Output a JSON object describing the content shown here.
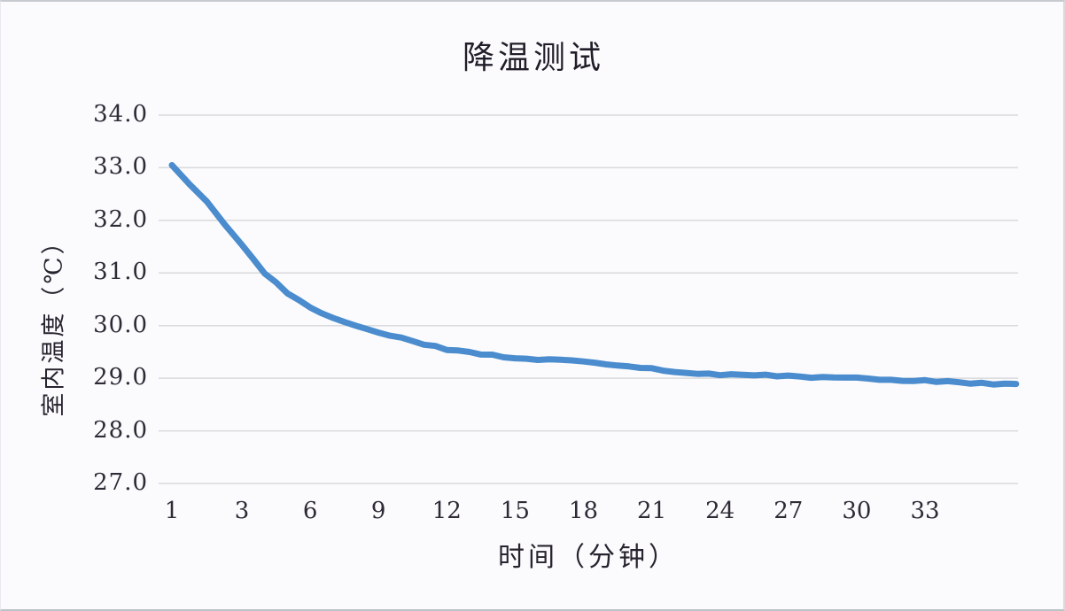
{
  "chart": {
    "colors": {
      "line": "#4a8ccd",
      "grid": "#d9dadc",
      "text": "#2b2733",
      "background": "#fbfbfd"
    }
  },
  "chart_data": {
    "type": "line",
    "title": "降温测试",
    "xlabel": "时间（分钟）",
    "ylabel": "室内温度（℃）",
    "x": [
      1,
      2,
      3,
      4,
      5,
      6,
      7,
      8,
      9,
      10,
      11,
      12,
      13,
      14,
      15,
      16,
      17,
      18,
      19,
      20,
      21,
      22,
      23,
      24,
      25,
      26,
      27,
      28,
      29,
      30,
      31,
      32,
      33,
      34,
      35,
      36,
      37
    ],
    "values": [
      33.05,
      32.35,
      31.53,
      31.0,
      30.62,
      30.33,
      30.14,
      30.02,
      29.87,
      29.75,
      29.64,
      29.56,
      29.49,
      29.43,
      29.39,
      29.36,
      29.34,
      29.31,
      29.27,
      29.23,
      29.19,
      29.11,
      29.08,
      29.07,
      29.07,
      29.05,
      29.05,
      29.03,
      29.01,
      28.99,
      28.98,
      28.97,
      28.95,
      28.93,
      28.91,
      28.89,
      28.88
    ],
    "series_name": "室内温度",
    "x_ticks": [
      1,
      3,
      6,
      9,
      12,
      15,
      18,
      21,
      24,
      27,
      30,
      33
    ],
    "x_tick_labels": [
      "1",
      "3",
      "6",
      "9",
      "12",
      "15",
      "18",
      "21",
      "24",
      "27",
      "30",
      "33"
    ],
    "y_ticks": [
      34.0,
      33.0,
      32.0,
      31.0,
      30.0,
      29.0,
      28.0,
      27.0
    ],
    "y_tick_labels": [
      "34.0",
      "33.0",
      "32.0",
      "31.0",
      "30.0",
      "29.0",
      "28.0",
      "27.0"
    ],
    "ylim": [
      27.0,
      34.0
    ],
    "grid": "horizontal",
    "legend": "none"
  }
}
